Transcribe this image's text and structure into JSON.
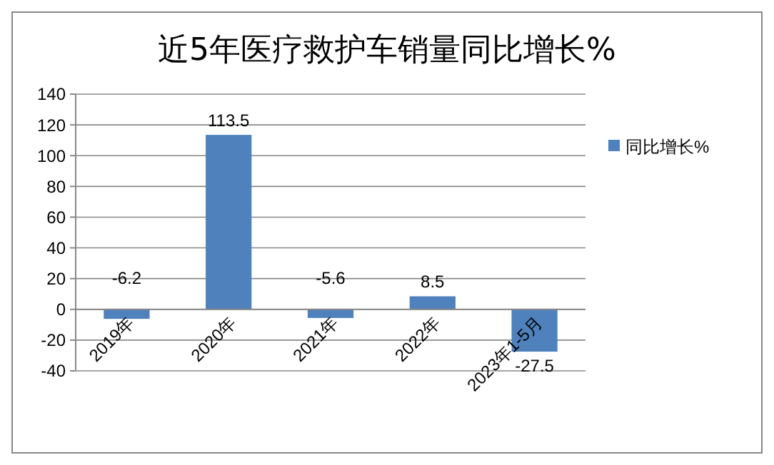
{
  "chart_data": {
    "type": "bar",
    "title": "近5年医疗救护车销量同比增长%",
    "categories": [
      "2019年",
      "2020年",
      "2021年",
      "2022年",
      "2023年1-5月"
    ],
    "series": [
      {
        "name": "同比增长%",
        "color": "#4f81bd",
        "values": [
          -6.2,
          113.5,
          -5.6,
          8.5,
          -27.5
        ]
      }
    ],
    "ylim": [
      -40,
      140
    ],
    "yticks": [
      -40,
      -20,
      0,
      20,
      40,
      60,
      80,
      100,
      120,
      140
    ],
    "grid": "y",
    "legend": "right",
    "data_labels": true
  }
}
